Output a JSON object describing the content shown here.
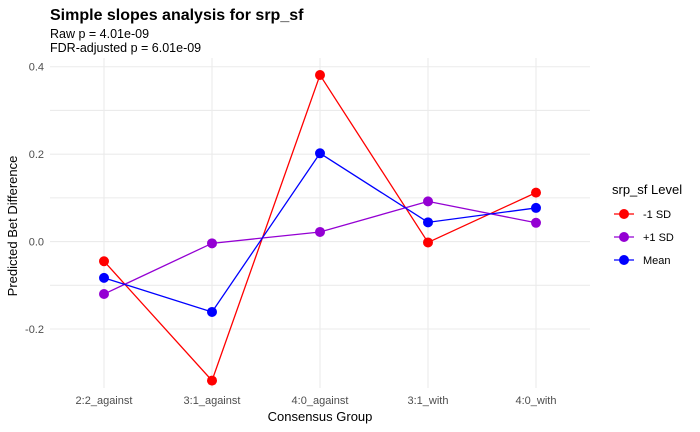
{
  "chart_data": {
    "type": "line",
    "title": "Simple slopes analysis for srp_sf",
    "subtitle_lines": [
      "Raw p = 4.01e-09",
      "FDR-adjusted p = 6.01e-09"
    ],
    "xlabel": "Consensus Group",
    "ylabel": "Predicted Bet Difference",
    "categories": [
      "2:2_against",
      "3:1_against",
      "4:0_against",
      "3:1_with",
      "4:0_with"
    ],
    "ylim": [
      -0.335,
      0.42
    ],
    "yticks": [
      0.4,
      0.2,
      0.0,
      -0.2
    ],
    "ytick_labels": [
      "0.4",
      "0.2",
      "0.0",
      "-0.2"
    ],
    "grid": true,
    "legend": {
      "title": "srp_sf Level",
      "position": "right",
      "entries": [
        "-1 SD",
        "+1 SD",
        "Mean"
      ]
    },
    "series": [
      {
        "name": "-1 SD",
        "color": "#ff0000",
        "values": [
          -0.045,
          -0.318,
          0.381,
          -0.002,
          0.112
        ]
      },
      {
        "name": "+1 SD",
        "color": "#9400d3",
        "values": [
          -0.12,
          -0.004,
          0.022,
          0.092,
          0.043
        ]
      },
      {
        "name": "Mean",
        "color": "#0000ff",
        "values": [
          -0.083,
          -0.161,
          0.202,
          0.044,
          0.077
        ]
      }
    ]
  }
}
